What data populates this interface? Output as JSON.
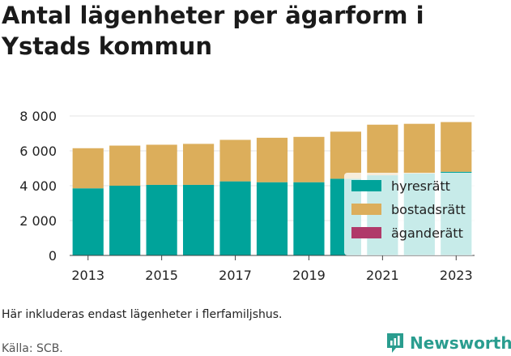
{
  "chart_data": {
    "type": "bar",
    "stacked": true,
    "title": "Antal lägenheter per ägarform i Ystads kommun",
    "categories": [
      "2013",
      "2014",
      "2015",
      "2016",
      "2017",
      "2018",
      "2019",
      "2020",
      "2021",
      "2022",
      "2023"
    ],
    "x_tick_labels": [
      "2013",
      "2015",
      "2017",
      "2019",
      "2021",
      "2023"
    ],
    "y_tick_labels": [
      "0",
      "2 000",
      "4 000",
      "6 000",
      "8 000"
    ],
    "ylim": [
      0,
      8000
    ],
    "grid": true,
    "legend_position": "right",
    "series": [
      {
        "name": "hyresrätt",
        "color": "#00a39a",
        "values": [
          3850,
          4000,
          4050,
          4050,
          4250,
          4200,
          4200,
          4400,
          4600,
          4700,
          4800
        ]
      },
      {
        "name": "bostadsrätt",
        "color": "#dcae5b",
        "values": [
          2300,
          2300,
          2300,
          2350,
          2380,
          2550,
          2600,
          2700,
          2900,
          2850,
          2850
        ]
      },
      {
        "name": "äganderätt",
        "color": "#b03a6a",
        "values": [
          0,
          0,
          0,
          0,
          0,
          0,
          0,
          0,
          0,
          0,
          0
        ]
      }
    ]
  },
  "footnote": "Här inkluderas endast lägenheter i flerfamiljshus.",
  "source": "Källa: SCB.",
  "brand": {
    "name": "Newsworthy",
    "icon": "bar-chart-icon",
    "color": "#2a9d8f"
  }
}
